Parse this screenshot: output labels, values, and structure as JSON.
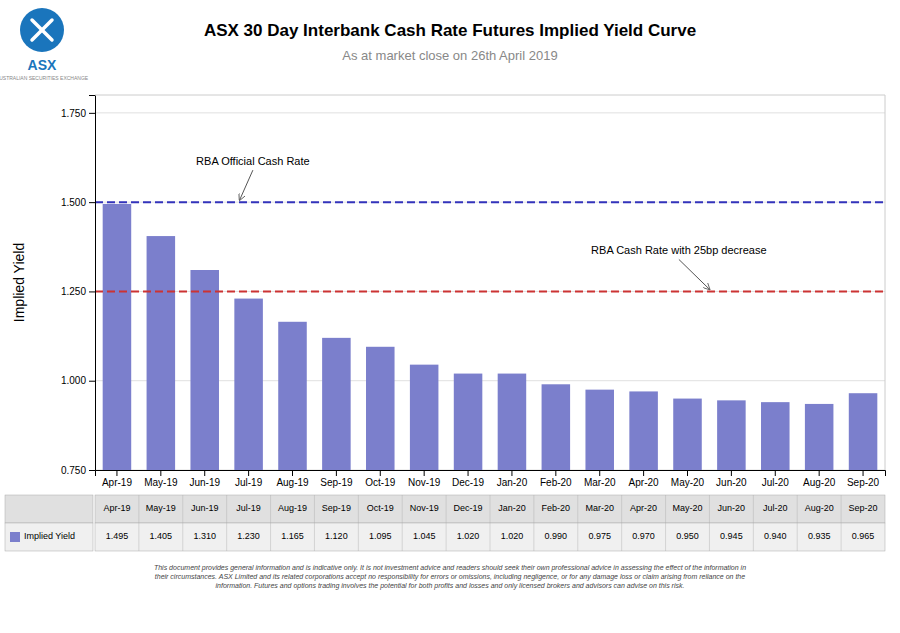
{
  "chart_data": {
    "type": "bar",
    "title": "ASX 30 Day Interbank Cash Rate Futures Implied Yield Curve",
    "subtitle": "As at market close on 26th April 2019",
    "ylabel": "Implied Yield",
    "categories": [
      "Apr-19",
      "May-19",
      "Jun-19",
      "Jul-19",
      "Aug-19",
      "Sep-19",
      "Oct-19",
      "Nov-19",
      "Dec-19",
      "Jan-20",
      "Feb-20",
      "Mar-20",
      "Apr-20",
      "May-20",
      "Jun-20",
      "Jul-20",
      "Aug-20",
      "Sep-20"
    ],
    "series": [
      {
        "name": "Implied Yield",
        "color": "#7b7fcc",
        "values": [
          1.495,
          1.405,
          1.31,
          1.23,
          1.165,
          1.12,
          1.095,
          1.045,
          1.02,
          1.02,
          0.99,
          0.975,
          0.97,
          0.95,
          0.945,
          0.94,
          0.935,
          0.965
        ],
        "value_labels": [
          "1.495",
          "1.405",
          "1.310",
          "1.230",
          "1.165",
          "1.120",
          "1.095",
          "1.045",
          "1.020",
          "1.020",
          "0.990",
          "0.975",
          "0.970",
          "0.950",
          "0.945",
          "0.940",
          "0.935",
          "0.965"
        ]
      }
    ],
    "ylim": [
      0.75,
      1.8
    ],
    "yticks": [
      {
        "value": 0.75,
        "label": "0.750"
      },
      {
        "value": 1.0,
        "label": "1.000"
      },
      {
        "value": 1.25,
        "label": "1.250"
      },
      {
        "value": 1.5,
        "label": "1.500"
      },
      {
        "value": 1.75,
        "label": "1.750"
      }
    ],
    "grid": true,
    "legend": "bottom-left",
    "reference_lines": [
      {
        "name": "RBA Official Cash Rate",
        "value": 1.5,
        "color": "#3333bb",
        "line_style": "dashed"
      },
      {
        "name": "RBA Cash Rate with 25bp decrease",
        "value": 1.25,
        "color": "#cc3333",
        "line_style": "dashed"
      }
    ],
    "logo": {
      "text": "ASX",
      "subtitle": "AUSTRALIAN SECURITIES EXCHANGE",
      "color": "#1a75bc"
    },
    "footnote": "This document provides general information and is indicative only. It is not investment advice and readers should seek their own professional advice in assessing the effect of the information in\ntheir circumstances. ASX Limited and its related corporations accept no responsibility for errors or omissions, including negligence, or for any damage loss or claim arising from reliance on the\ninformation. Futures and options trading involves the potential for both profits and losses and only licensed brokers and advisors can advise on this risk."
  }
}
